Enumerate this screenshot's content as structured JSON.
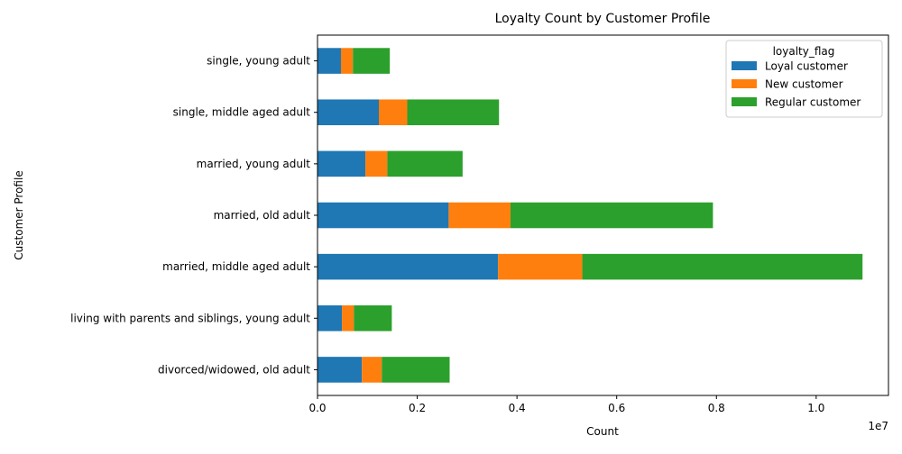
{
  "chart_data": {
    "type": "bar",
    "orientation": "horizontal",
    "stacked": true,
    "title": "Loyalty Count by Customer Profile",
    "xlabel": "Count",
    "ylabel": "Customer Profile",
    "x_offset_label": "1e7",
    "xlim": [
      0,
      11.45
    ],
    "x_ticks": [
      0.0,
      0.2,
      0.4,
      0.6,
      0.8,
      1.0
    ],
    "x_tick_labels": [
      "0.0",
      "0.2",
      "0.4",
      "0.6",
      "0.8",
      "1.0"
    ],
    "x_tick_scale": 10,
    "categories": [
      "divorced/widowed, old adult",
      "living with parents and siblings, young adult",
      "married, middle aged adult",
      "married, old adult",
      "married, young adult",
      "single, middle aged adult",
      "single, young adult"
    ],
    "series": [
      {
        "name": "Loyal customer",
        "color": "#1f77b4",
        "values": [
          0.89,
          0.49,
          3.62,
          2.63,
          0.96,
          1.23,
          0.47
        ]
      },
      {
        "name": "New customer",
        "color": "#ff7f0e",
        "values": [
          0.4,
          0.24,
          1.69,
          1.24,
          0.44,
          0.57,
          0.24
        ]
      },
      {
        "name": "Regular customer",
        "color": "#2ca02c",
        "values": [
          1.36,
          0.76,
          5.62,
          4.06,
          1.51,
          1.84,
          0.74
        ]
      }
    ],
    "legend_title": "loyalty_flag",
    "legend_position": "top-right",
    "grid": false
  }
}
